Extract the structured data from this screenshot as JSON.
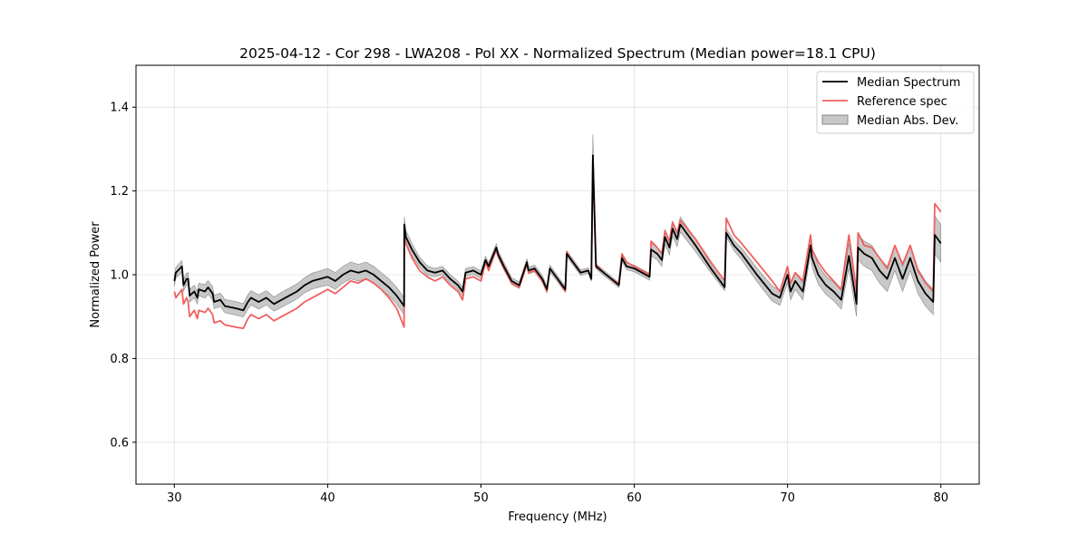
{
  "chart_data": {
    "type": "line",
    "title": "2025-04-12 - Cor 298 - LWA208 - Pol XX - Normalized Spectrum (Median power=18.1 CPU)",
    "xlabel": "Frequency (MHz)",
    "ylabel": "Normalized Power",
    "xlim": [
      27.5,
      82.5
    ],
    "ylim": [
      0.5,
      1.5
    ],
    "xticks": [
      30,
      40,
      50,
      60,
      70,
      80
    ],
    "yticks": [
      0.6,
      0.8,
      1.0,
      1.2,
      1.4
    ],
    "xtick_labels": [
      "30",
      "40",
      "50",
      "60",
      "70",
      "80"
    ],
    "ytick_labels": [
      "0.6",
      "0.8",
      "1.0",
      "1.2",
      "1.4"
    ],
    "grid": true,
    "legend_position": "top-right",
    "legend": [
      "Median Spectrum",
      "Reference spec",
      "Median Abs. Dev."
    ],
    "colors": {
      "median": "#000000",
      "reference": "#f06060",
      "band": "#b0b0b0",
      "band_edge": "#8a8a8a",
      "grid": "#e0e0e0"
    },
    "series": [
      {
        "name": "Median Spectrum",
        "x": [
          30.0,
          30.1,
          30.5,
          30.6,
          30.8,
          30.9,
          31.0,
          31.3,
          31.5,
          31.6,
          32.0,
          32.2,
          32.5,
          32.6,
          33.0,
          33.3,
          34.0,
          34.5,
          34.8,
          35.0,
          35.5,
          36.0,
          36.5,
          37.0,
          37.5,
          38.0,
          38.5,
          39.0,
          39.5,
          40.0,
          40.5,
          41.0,
          41.5,
          42.0,
          42.5,
          43.0,
          43.5,
          44.0,
          44.5,
          44.99,
          45.0,
          45.1,
          45.5,
          46.0,
          46.5,
          47.0,
          47.5,
          48.0,
          48.5,
          48.8,
          49.0,
          49.5,
          50.0,
          50.3,
          50.5,
          51.0,
          51.1,
          51.5,
          52.0,
          52.5,
          53.0,
          53.1,
          53.5,
          54.0,
          54.3,
          54.5,
          55.0,
          55.5,
          55.6,
          56.0,
          56.5,
          57.0,
          57.2,
          57.3,
          57.5,
          58.0,
          58.5,
          59.0,
          59.2,
          59.5,
          60.0,
          60.5,
          61.0,
          61.1,
          61.5,
          61.8,
          62.0,
          62.3,
          62.5,
          62.8,
          63.0,
          64.0,
          65.0,
          65.9,
          66.0,
          66.5,
          67.0,
          68.0,
          69.0,
          69.5,
          70.0,
          70.2,
          70.5,
          71.0,
          71.5,
          71.6,
          72.0,
          72.5,
          73.0,
          73.5,
          74.0,
          74.5,
          74.6,
          75.0,
          75.5,
          76.0,
          76.5,
          77.0,
          77.5,
          78.0,
          78.5,
          79.0,
          79.5,
          79.6,
          80.0
        ],
        "values": [
          0.985,
          1.005,
          1.02,
          0.975,
          0.99,
          0.99,
          0.95,
          0.96,
          0.945,
          0.965,
          0.96,
          0.97,
          0.955,
          0.935,
          0.94,
          0.925,
          0.92,
          0.915,
          0.935,
          0.945,
          0.935,
          0.945,
          0.93,
          0.94,
          0.95,
          0.96,
          0.975,
          0.985,
          0.99,
          0.995,
          0.985,
          1.0,
          1.01,
          1.005,
          1.01,
          1.0,
          0.985,
          0.97,
          0.95,
          0.925,
          1.12,
          1.09,
          1.06,
          1.03,
          1.01,
          1.005,
          1.01,
          0.99,
          0.975,
          0.96,
          1.005,
          1.01,
          1.0,
          1.035,
          1.02,
          1.065,
          1.05,
          1.02,
          0.985,
          0.975,
          1.03,
          1.01,
          1.015,
          0.99,
          0.965,
          1.015,
          0.99,
          0.965,
          1.05,
          1.03,
          1.005,
          1.01,
          0.99,
          1.285,
          1.02,
          1.005,
          0.99,
          0.975,
          1.04,
          1.02,
          1.015,
          1.005,
          0.995,
          1.06,
          1.05,
          1.035,
          1.09,
          1.065,
          1.11,
          1.085,
          1.12,
          1.07,
          1.015,
          0.97,
          1.1,
          1.07,
          1.05,
          1.0,
          0.955,
          0.945,
          1.0,
          0.96,
          0.985,
          0.96,
          1.07,
          1.04,
          1.0,
          0.975,
          0.96,
          0.94,
          1.045,
          0.93,
          1.065,
          1.05,
          1.04,
          1.01,
          0.99,
          1.04,
          0.99,
          1.04,
          0.985,
          0.955,
          0.935,
          1.095,
          1.075
        ]
      },
      {
        "name": "Reference spec",
        "x": [
          30.0,
          30.1,
          30.5,
          30.6,
          30.8,
          30.9,
          31.0,
          31.3,
          31.5,
          31.6,
          32.0,
          32.2,
          32.5,
          32.6,
          33.0,
          33.3,
          34.0,
          34.5,
          34.8,
          35.0,
          35.5,
          36.0,
          36.5,
          37.0,
          37.5,
          38.0,
          38.5,
          39.0,
          39.5,
          40.0,
          40.5,
          41.0,
          41.5,
          42.0,
          42.5,
          43.0,
          43.5,
          44.0,
          44.5,
          44.99,
          45.0,
          45.1,
          45.5,
          46.0,
          46.5,
          47.0,
          47.5,
          48.0,
          48.5,
          48.8,
          49.0,
          49.5,
          50.0,
          50.3,
          50.5,
          51.0,
          51.1,
          51.5,
          52.0,
          52.5,
          53.0,
          53.1,
          53.5,
          54.0,
          54.3,
          54.5,
          55.0,
          55.5,
          55.6,
          56.0,
          56.5,
          57.0,
          57.2,
          57.3,
          57.5,
          58.0,
          58.5,
          59.0,
          59.2,
          59.5,
          60.0,
          60.5,
          61.0,
          61.1,
          61.5,
          61.8,
          62.0,
          62.3,
          62.5,
          62.8,
          63.0,
          64.0,
          65.0,
          65.9,
          66.0,
          66.5,
          67.0,
          68.0,
          69.0,
          69.5,
          70.0,
          70.2,
          70.5,
          71.0,
          71.5,
          71.6,
          72.0,
          72.5,
          73.0,
          73.5,
          74.0,
          74.5,
          74.6,
          75.0,
          75.5,
          76.0,
          76.5,
          77.0,
          77.5,
          78.0,
          78.5,
          79.0,
          79.5,
          79.6,
          80.0
        ],
        "values": [
          0.96,
          0.945,
          0.965,
          0.93,
          0.945,
          0.935,
          0.9,
          0.915,
          0.895,
          0.915,
          0.91,
          0.92,
          0.905,
          0.885,
          0.89,
          0.88,
          0.875,
          0.872,
          0.895,
          0.905,
          0.895,
          0.905,
          0.89,
          0.9,
          0.91,
          0.92,
          0.935,
          0.945,
          0.955,
          0.965,
          0.955,
          0.97,
          0.985,
          0.98,
          0.99,
          0.98,
          0.965,
          0.945,
          0.92,
          0.875,
          1.1,
          1.075,
          1.04,
          1.01,
          0.995,
          0.985,
          0.995,
          0.975,
          0.96,
          0.94,
          0.99,
          0.995,
          0.985,
          1.03,
          1.01,
          1.06,
          1.045,
          1.015,
          0.98,
          0.97,
          1.025,
          1.005,
          1.01,
          0.985,
          0.96,
          1.015,
          0.99,
          0.96,
          1.055,
          1.03,
          1.005,
          1.01,
          0.99,
          1.28,
          1.025,
          1.005,
          0.99,
          0.98,
          1.05,
          1.03,
          1.02,
          1.01,
          1.0,
          1.08,
          1.065,
          1.05,
          1.105,
          1.08,
          1.125,
          1.1,
          1.13,
          1.085,
          1.03,
          0.985,
          1.135,
          1.095,
          1.075,
          1.03,
          0.985,
          0.96,
          1.02,
          0.98,
          1.005,
          0.985,
          1.095,
          1.06,
          1.03,
          1.005,
          0.985,
          0.965,
          1.095,
          0.96,
          1.1,
          1.07,
          1.065,
          1.04,
          1.015,
          1.07,
          1.025,
          1.07,
          1.01,
          0.98,
          0.96,
          1.17,
          1.15
        ]
      }
    ],
    "band": {
      "name": "Median Abs. Dev.",
      "half_width": [
        0.012,
        0.013,
        0.014,
        0.014,
        0.014,
        0.015,
        0.015,
        0.015,
        0.015,
        0.015,
        0.016,
        0.016,
        0.016,
        0.016,
        0.016,
        0.016,
        0.016,
        0.016,
        0.017,
        0.017,
        0.017,
        0.017,
        0.017,
        0.018,
        0.018,
        0.018,
        0.018,
        0.019,
        0.019,
        0.02,
        0.02,
        0.02,
        0.02,
        0.02,
        0.02,
        0.02,
        0.02,
        0.02,
        0.02,
        0.02,
        0.018,
        0.016,
        0.014,
        0.012,
        0.011,
        0.01,
        0.01,
        0.01,
        0.01,
        0.01,
        0.01,
        0.009,
        0.009,
        0.009,
        0.009,
        0.009,
        0.009,
        0.009,
        0.008,
        0.008,
        0.008,
        0.008,
        0.008,
        0.008,
        0.008,
        0.008,
        0.007,
        0.007,
        0.007,
        0.007,
        0.007,
        0.006,
        0.006,
        0.05,
        0.006,
        0.006,
        0.006,
        0.006,
        0.008,
        0.008,
        0.008,
        0.008,
        0.008,
        0.015,
        0.015,
        0.015,
        0.018,
        0.018,
        0.018,
        0.018,
        0.018,
        0.015,
        0.01,
        0.008,
        0.01,
        0.012,
        0.014,
        0.016,
        0.018,
        0.018,
        0.02,
        0.02,
        0.02,
        0.02,
        0.022,
        0.022,
        0.022,
        0.022,
        0.022,
        0.022,
        0.03,
        0.03,
        0.03,
        0.03,
        0.03,
        0.03,
        0.03,
        0.03,
        0.03,
        0.03,
        0.03,
        0.03,
        0.03,
        0.045,
        0.045
      ]
    }
  }
}
